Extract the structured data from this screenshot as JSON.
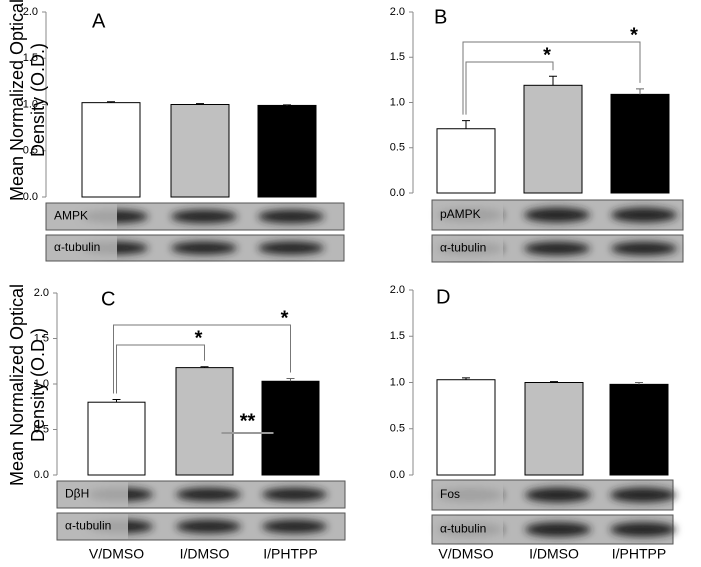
{
  "chart_data": [
    {
      "type": "bar",
      "panel": "A",
      "ylabel": "Mean Normalized Optical Density (O.D.)",
      "categories": [
        null,
        null,
        null
      ],
      "values": [
        1.02,
        1.0,
        0.99
      ],
      "errors": [
        0.01,
        0.01,
        0.01
      ],
      "colors": [
        "#ffffff",
        "#c0c0c0",
        "#000000"
      ],
      "ylim": [
        0,
        2
      ],
      "yticks": [
        {
          "value": 0,
          "label": "0.0"
        },
        0.5,
        {
          "value": 1,
          "label": "1.0"
        },
        1.5,
        {
          "value": 2,
          "label": "2.0"
        }
      ],
      "blots": [
        "AMPK",
        "α-tubulin"
      ],
      "significance": []
    },
    {
      "type": "bar",
      "panel": "B",
      "categories": [
        null,
        null,
        null
      ],
      "values": [
        0.71,
        1.19,
        1.09
      ],
      "errors": [
        0.09,
        0.1,
        0.06
      ],
      "colors": [
        "#ffffff",
        "#c0c0c0",
        "#000000"
      ],
      "ylim": [
        0,
        2
      ],
      "yticks": [
        {
          "value": 0,
          "label": "0.0"
        },
        0.5,
        {
          "value": 1,
          "label": "1.0"
        },
        1.5,
        {
          "value": 2,
          "label": "2.0"
        }
      ],
      "blots": [
        "pAMPK",
        "α-tubulin"
      ],
      "significance": [
        {
          "from": 0,
          "to": 1,
          "label": "*"
        },
        {
          "from": 0,
          "to": 2,
          "label": "*"
        }
      ]
    },
    {
      "type": "bar",
      "panel": "C",
      "ylabel": "Mean Normalized Optical Density (O.D.)",
      "categories": [
        "V/DMSO",
        "I/DMSO",
        "I/PHTPP"
      ],
      "values": [
        0.8,
        1.18,
        1.03
      ],
      "errors": [
        0.03,
        0.01,
        0.03
      ],
      "colors": [
        "#ffffff",
        "#c0c0c0",
        "#000000"
      ],
      "ylim": [
        0,
        2
      ],
      "yticks": [
        {
          "value": 0,
          "label": "0.0"
        },
        0.5,
        {
          "value": 1,
          "label": "1.0"
        },
        1.5,
        {
          "value": 2,
          "label": "2.0"
        }
      ],
      "blots": [
        "DβH",
        "α-tubulin"
      ],
      "significance": [
        {
          "from": 0,
          "to": 1,
          "label": "*"
        },
        {
          "from": 0,
          "to": 2,
          "label": "*"
        },
        {
          "from": 1,
          "to": 2,
          "label": "**",
          "kind": "line"
        }
      ]
    },
    {
      "type": "bar",
      "panel": "D",
      "categories": [
        "V/DMSO",
        "I/DMSO",
        "I/PHTPP"
      ],
      "values": [
        1.03,
        1.0,
        0.98
      ],
      "errors": [
        0.02,
        0.01,
        0.02
      ],
      "colors": [
        "#ffffff",
        "#c0c0c0",
        "#000000"
      ],
      "ylim": [
        0,
        2
      ],
      "yticks": [
        {
          "value": 0,
          "label": "0.0"
        },
        0.5,
        {
          "value": 1,
          "label": "1.0"
        },
        1.5,
        {
          "value": 2,
          "label": "2.0"
        }
      ],
      "blots": [
        "Fos",
        "α-tubulin"
      ],
      "significance": []
    }
  ]
}
